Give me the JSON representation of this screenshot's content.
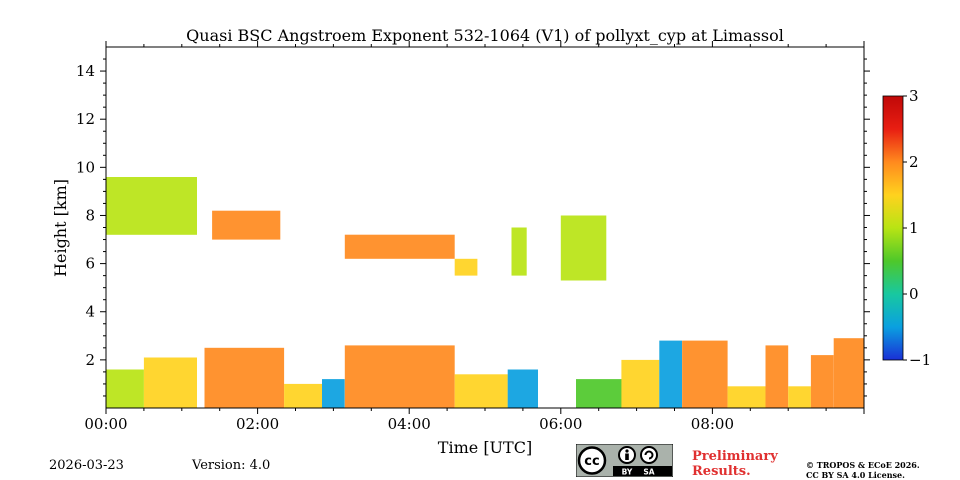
{
  "chart_data": {
    "type": "heatmap",
    "title": "Quasi BSC Angstroem Exponent 532-1064 (V1) of pollyxt_cyp at Limassol",
    "xlabel": "Time [UTC]",
    "ylabel": "Height [km]",
    "xlim": [
      0,
      10
    ],
    "ylim": [
      0,
      15
    ],
    "x_ticks": [
      {
        "value": 0,
        "label": "00:00"
      },
      {
        "value": 2,
        "label": "02:00"
      },
      {
        "value": 4,
        "label": "04:00"
      },
      {
        "value": 6,
        "label": "06:00"
      },
      {
        "value": 8,
        "label": "08:00"
      }
    ],
    "y_ticks": [
      {
        "value": 2,
        "label": "2"
      },
      {
        "value": 4,
        "label": "4"
      },
      {
        "value": 6,
        "label": "6"
      },
      {
        "value": 8,
        "label": "8"
      },
      {
        "value": 10,
        "label": "10"
      },
      {
        "value": 12,
        "label": "12"
      },
      {
        "value": 14,
        "label": "14"
      }
    ],
    "colorbar": {
      "min": -1,
      "max": 3,
      "ticks": [
        {
          "value": 3,
          "label": "3"
        },
        {
          "value": 2,
          "label": "2"
        },
        {
          "value": 1,
          "label": "1"
        },
        {
          "value": 0,
          "label": "0"
        },
        {
          "value": -1,
          "label": "−1"
        }
      ],
      "colors": [
        "#1a2fd6",
        "#0aa0e0",
        "#18c8a0",
        "#4ec82a",
        "#b8e414",
        "#ffd21e",
        "#ff8a1e",
        "#e81e12",
        "#c00808"
      ]
    },
    "layers": [
      {
        "name": "near-surface",
        "segments": [
          {
            "t0": 0.0,
            "t1": 0.5,
            "h0": 0.0,
            "h1": 1.6,
            "value": 1.2
          },
          {
            "t0": 0.5,
            "t1": 1.2,
            "h0": 0.0,
            "h1": 2.1,
            "value": 1.5
          },
          {
            "t0": 1.3,
            "t1": 2.35,
            "h0": 0.0,
            "h1": 2.5,
            "value": 1.9
          },
          {
            "t0": 2.35,
            "t1": 2.85,
            "h0": 0.0,
            "h1": 1.0,
            "value": 1.7
          },
          {
            "t0": 2.85,
            "t1": 3.15,
            "h0": 0.0,
            "h1": 1.2,
            "value": -0.4
          },
          {
            "t0": 3.15,
            "t1": 4.6,
            "h0": 0.0,
            "h1": 2.6,
            "value": 1.9
          },
          {
            "t0": 4.6,
            "t1": 5.3,
            "h0": 0.0,
            "h1": 1.4,
            "value": 1.6
          },
          {
            "t0": 5.3,
            "t1": 5.7,
            "h0": 0.0,
            "h1": 1.6,
            "value": -0.6
          },
          {
            "t0": 6.2,
            "t1": 6.8,
            "h0": 0.0,
            "h1": 1.2,
            "value": 0.6
          },
          {
            "t0": 6.8,
            "t1": 7.3,
            "h0": 0.0,
            "h1": 2.0,
            "value": 1.6
          },
          {
            "t0": 7.3,
            "t1": 7.6,
            "h0": 0.0,
            "h1": 2.8,
            "value": -0.3
          },
          {
            "t0": 7.6,
            "t1": 8.2,
            "h0": 0.0,
            "h1": 2.8,
            "value": 1.8
          },
          {
            "t0": 8.2,
            "t1": 8.7,
            "h0": 0.0,
            "h1": 0.9,
            "value": 1.3
          },
          {
            "t0": 8.7,
            "t1": 9.0,
            "h0": 0.0,
            "h1": 2.6,
            "value": 1.9
          },
          {
            "t0": 9.0,
            "t1": 9.3,
            "h0": 0.0,
            "h1": 0.9,
            "value": 1.3
          },
          {
            "t0": 9.3,
            "t1": 9.6,
            "h0": 0.0,
            "h1": 2.2,
            "value": 1.8
          },
          {
            "t0": 9.6,
            "t1": 10.0,
            "h0": 0.0,
            "h1": 2.9,
            "value": 2.1
          }
        ]
      },
      {
        "name": "elevated-aerosol",
        "segments": [
          {
            "t0": 0.0,
            "t1": 1.2,
            "h0": 7.2,
            "h1": 9.6,
            "value": 1.0
          },
          {
            "t0": 1.4,
            "t1": 2.3,
            "h0": 7.0,
            "h1": 8.2,
            "value": 2.0
          },
          {
            "t0": 3.15,
            "t1": 4.6,
            "h0": 6.2,
            "h1": 7.2,
            "value": 2.0
          },
          {
            "t0": 4.6,
            "t1": 4.9,
            "h0": 5.5,
            "h1": 6.2,
            "value": 1.7
          },
          {
            "t0": 5.35,
            "t1": 5.55,
            "h0": 5.5,
            "h1": 7.5,
            "value": 0.8
          },
          {
            "t0": 6.0,
            "t1": 6.6,
            "h0": 5.3,
            "h1": 8.0,
            "value": 1.0
          }
        ]
      }
    ]
  },
  "footer": {
    "date": "2026-03-23",
    "version": "Version: 4.0",
    "preliminary_line1": "Preliminary",
    "preliminary_line2": "Results.",
    "credit_line1": "© TROPOS & ECoE 2026.",
    "credit_line2": "CC BY SA 4.0 License.",
    "license_badge": {
      "by": "BY",
      "sa": "SA"
    }
  }
}
